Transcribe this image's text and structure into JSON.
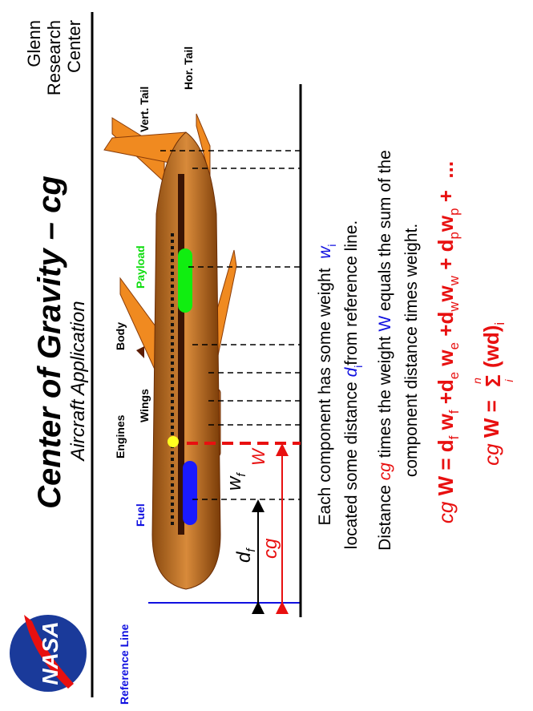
{
  "header": {
    "title": "Center  of  Gravity  –  cg",
    "subtitle": "Aircraft  Application",
    "org": [
      "Glenn",
      "Research",
      "Center"
    ],
    "logo": "NASA"
  },
  "labels": {
    "reference_line": "Reference Line",
    "fuel": "Fuel",
    "engines": "Engines",
    "wings": "Wings",
    "body": "Body",
    "payload": "Payload",
    "vert_tail": "Vert. Tail",
    "hor_tail": "Hor. Tail",
    "d": "d",
    "d_sub": "f",
    "cg": "cg",
    "W": "W",
    "w": "w",
    "w_sub": "f"
  },
  "text": [
    [
      {
        "t": "Each component has some weight  ",
        "s": ""
      },
      {
        "t": "w",
        "s": "blue italic"
      },
      {
        "t": "i",
        "s": "blue sub"
      }
    ],
    [
      {
        "t": "located some distance ",
        "s": ""
      },
      {
        "t": "d",
        "s": "blue italic"
      },
      {
        "t": "i",
        "s": "blue sub"
      },
      {
        "t": "from reference line.",
        "s": ""
      }
    ],
    [
      {
        "t": "Distance ",
        "s": ""
      },
      {
        "t": "cg",
        "s": "red italic"
      },
      {
        "t": " times the weight ",
        "s": ""
      },
      {
        "t": "W",
        "s": "blue"
      },
      {
        "t": " equals the sum of the",
        "s": ""
      }
    ],
    [
      {
        "t": "component distance times weight.",
        "s": ""
      }
    ]
  ],
  "formula1": [
    {
      "t": "cg ",
      "s": "red italic"
    },
    {
      "t": "W = d",
      "s": "red bold"
    },
    {
      "t": "f",
      "s": "red sub"
    },
    {
      "t": " w",
      "s": "red bold"
    },
    {
      "t": "f",
      "s": "red sub"
    },
    {
      "t": " +d",
      "s": "red bold"
    },
    {
      "t": "e",
      "s": "red sub"
    },
    {
      "t": " w",
      "s": "red bold"
    },
    {
      "t": "e",
      "s": "red sub"
    },
    {
      "t": " +d",
      "s": "red bold"
    },
    {
      "t": "w",
      "s": "red sub"
    },
    {
      "t": "w",
      "s": "red bold"
    },
    {
      "t": "w",
      "s": "red sub"
    },
    {
      "t": " + d",
      "s": "red bold"
    },
    {
      "t": "p",
      "s": "red sub"
    },
    {
      "t": "w",
      "s": "red bold"
    },
    {
      "t": "p",
      "s": "red sub"
    },
    {
      "t": " +  ...",
      "s": "red bold"
    }
  ],
  "formula2": {
    "lhs": [
      {
        "t": "cg ",
        "s": "red italic"
      },
      {
        "t": "W = ",
        "s": "red bold"
      }
    ],
    "sigma": "Σ",
    "upper": "n",
    "lower": "i",
    "rhs": [
      {
        "t": "(wd)",
        "s": "red bold"
      },
      {
        "t": "i",
        "s": "red sub"
      }
    ]
  }
}
